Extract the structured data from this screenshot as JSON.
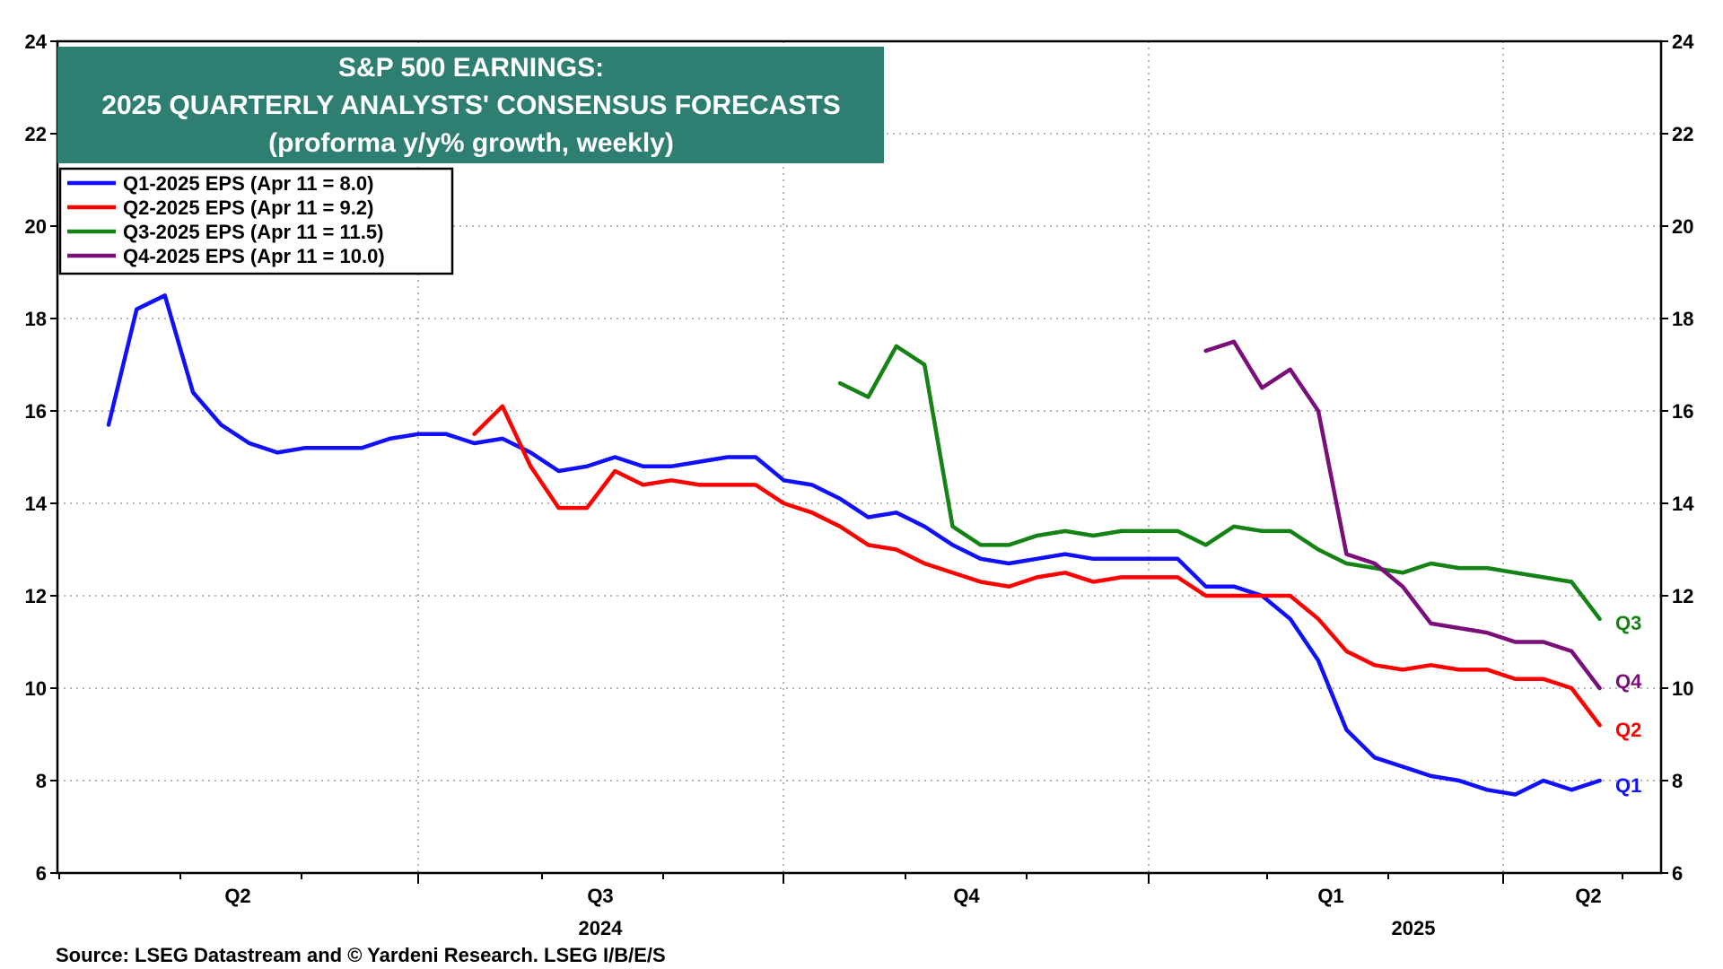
{
  "chart_data": {
    "type": "line",
    "title_lines": [
      "S&P 500 EARNINGS:",
      "2025 QUARTERLY ANALYSTS' CONSENSUS FORECASTS",
      "(proforma y/y% growth, weekly)"
    ],
    "ylim": [
      6,
      24
    ],
    "yticks": [
      6,
      8,
      10,
      12,
      14,
      16,
      18,
      20,
      22,
      24
    ],
    "y_left_labels": [
      "6",
      "8",
      "10",
      "12",
      "14",
      "16",
      "18",
      "20",
      "22",
      "24"
    ],
    "y_right_labels": [
      "6",
      "8",
      "10",
      "12",
      "14",
      "16",
      "18",
      "20",
      "22",
      "24"
    ],
    "grid": true,
    "legend_position": "top-left",
    "x_quarter_labels": [
      "Q2",
      "Q3",
      "Q4",
      "Q1",
      "Q2"
    ],
    "x_year_labels": [
      "2024",
      "2025"
    ],
    "series": [
      {
        "name": "Q1-2025 EPS (Apr 11 = 8.0)",
        "color": "#1010ff",
        "end_label": "Q1",
        "start_week": 0,
        "values": [
          15.7,
          18.2,
          18.5,
          16.4,
          15.7,
          15.3,
          15.1,
          15.2,
          15.2,
          15.2,
          15.4,
          15.5,
          15.5,
          15.3,
          15.4,
          15.1,
          14.7,
          14.8,
          15.0,
          14.8,
          14.8,
          14.9,
          15.0,
          15.0,
          14.5,
          14.4,
          14.1,
          13.7,
          13.8,
          13.5,
          13.1,
          12.8,
          12.7,
          12.8,
          12.9,
          12.8,
          12.8,
          12.8,
          12.8,
          12.2,
          12.2,
          12.0,
          11.5,
          10.6,
          9.1,
          8.5,
          8.3,
          8.1,
          8.0,
          7.8,
          7.7,
          8.0,
          7.8,
          8.0
        ]
      },
      {
        "name": "Q2-2025 EPS (Apr 11 = 9.2)",
        "color": "#ff0000",
        "end_label": "Q2",
        "start_week": 13,
        "values": [
          15.5,
          16.1,
          14.8,
          13.9,
          13.9,
          14.7,
          14.4,
          14.5,
          14.4,
          14.4,
          14.4,
          14.0,
          13.8,
          13.5,
          13.1,
          13.0,
          12.7,
          12.5,
          12.3,
          12.2,
          12.4,
          12.5,
          12.3,
          12.4,
          12.4,
          12.4,
          12.0,
          12.0,
          12.0,
          12.0,
          11.5,
          10.8,
          10.5,
          10.4,
          10.5,
          10.4,
          10.4,
          10.2,
          10.2,
          10.0,
          9.2
        ]
      },
      {
        "name": "Q3-2025  EPS (Apr 11 = 11.5)",
        "color": "#148214",
        "end_label": "Q3",
        "start_week": 26,
        "values": [
          16.6,
          16.3,
          17.4,
          17.0,
          13.5,
          13.1,
          13.1,
          13.3,
          13.4,
          13.3,
          13.4,
          13.4,
          13.4,
          13.1,
          13.5,
          13.4,
          13.4,
          13.0,
          12.7,
          12.6,
          12.5,
          12.7,
          12.6,
          12.6,
          12.5,
          12.4,
          12.3,
          11.5
        ]
      },
      {
        "name": "Q4-2025 EPS (Apr 11 = 10.0)",
        "color": "#7a0f7a",
        "end_label": "Q4",
        "start_week": 39,
        "values": [
          17.3,
          17.5,
          16.5,
          16.9,
          16.0,
          12.9,
          12.7,
          12.2,
          11.4,
          11.3,
          11.2,
          11.0,
          11.0,
          10.8,
          10.0
        ]
      }
    ],
    "source": "Source: LSEG Datastream and © Yardeni Research. LSEG I/B/E/S"
  }
}
